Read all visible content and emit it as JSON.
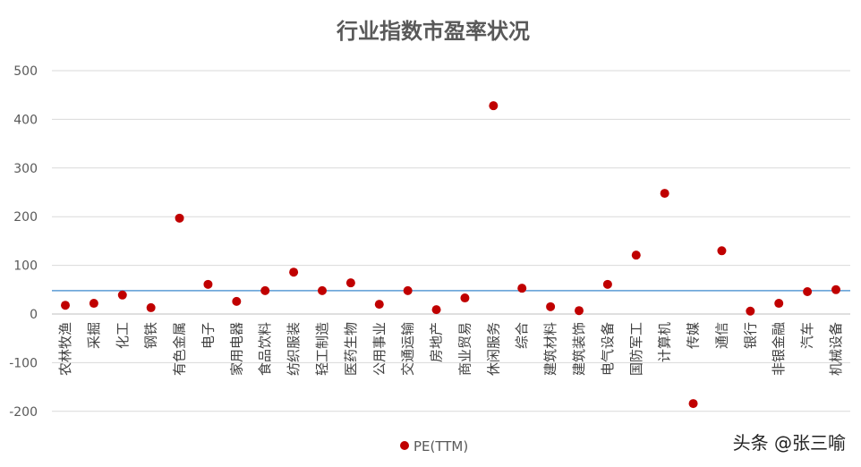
{
  "chart_data": {
    "type": "scatter",
    "title": "行业指数市盈率状况",
    "xlabel": "",
    "ylabel": "",
    "ylim": [
      -200,
      500
    ],
    "yticks": [
      -200,
      -100,
      0,
      100,
      200,
      300,
      400,
      500
    ],
    "grid": true,
    "legend_position": "bottom",
    "categories": [
      "农林牧渔",
      "采掘",
      "化工",
      "钢铁",
      "有色金属",
      "电子",
      "家用电器",
      "食品饮料",
      "纺织服装",
      "轻工制造",
      "医药生物",
      "公用事业",
      "交通运输",
      "房地产",
      "商业贸易",
      "休闲服务",
      "综合",
      "建筑材料",
      "建筑装饰",
      "电气设备",
      "国防军工",
      "计算机",
      "传媒",
      "通信",
      "银行",
      "非银金融",
      "汽车",
      "机械设备"
    ],
    "series": [
      {
        "name": "PE(TTM)",
        "color": "#C00000",
        "values": [
          18,
          22,
          39,
          13,
          197,
          61,
          26,
          48,
          86,
          48,
          64,
          20,
          48,
          9,
          33,
          428,
          53,
          15,
          7,
          61,
          121,
          248,
          -184,
          130,
          6,
          22,
          46,
          50
        ]
      }
    ],
    "reference_line": {
      "value": 48,
      "color": "#5B9BD5"
    }
  },
  "watermark": "头条 @张三喻"
}
